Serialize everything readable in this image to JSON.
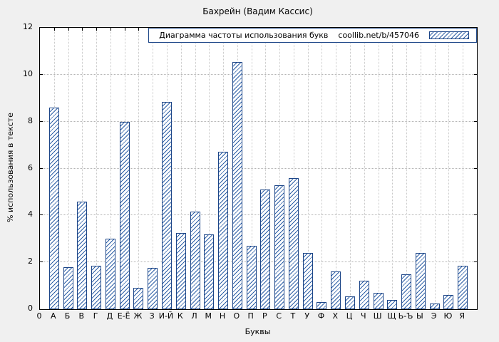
{
  "chart_data": {
    "type": "bar",
    "title": "Бахрейн (Вадим Кассис)",
    "xlabel": "Буквы",
    "ylabel": "% использования в тексте",
    "legend": {
      "title": "Диаграмма частоты использования букв",
      "url": "coollib.net/b/457046"
    },
    "origin_tick": "0",
    "ylim": [
      0,
      12
    ],
    "yticks": [
      0,
      2,
      4,
      6,
      8,
      10,
      12
    ],
    "grid": true,
    "legend_position": "top-right",
    "categories": [
      "А",
      "Б",
      "В",
      "Г",
      "Д",
      "Е-Ё",
      "Ж",
      "З",
      "И-Й",
      "К",
      "Л",
      "М",
      "Н",
      "О",
      "П",
      "Р",
      "С",
      "Т",
      "У",
      "Ф",
      "Х",
      "Ц",
      "Ч",
      "Ш",
      "Щ",
      "Ь-Ъ",
      "Ы",
      "Э",
      "Ю",
      "Я"
    ],
    "values": [
      8.6,
      1.8,
      4.6,
      1.85,
      3.0,
      8.0,
      0.9,
      1.75,
      8.85,
      3.25,
      4.15,
      3.2,
      6.7,
      10.55,
      2.7,
      5.1,
      5.3,
      5.6,
      2.4,
      0.3,
      1.6,
      0.55,
      1.2,
      0.7,
      0.4,
      1.5,
      2.4,
      0.25,
      0.6,
      1.85
    ],
    "colors": {
      "bar_border": "#1c4587",
      "bar_hatch": "#2d5fa6",
      "grid": "#b3b3b3",
      "background": "#f0f0f0",
      "plot_background": "#ffffff"
    }
  }
}
